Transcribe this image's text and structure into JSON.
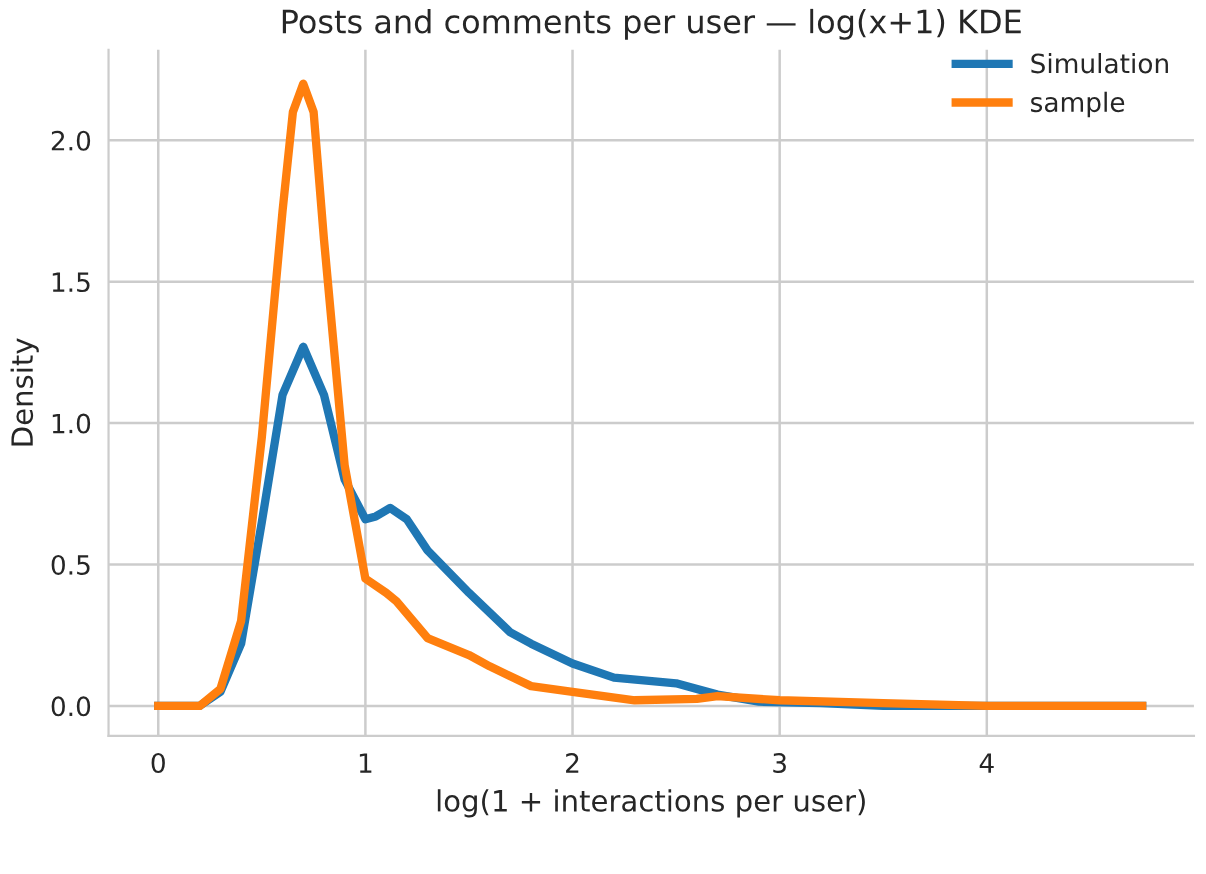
{
  "chart_data": {
    "type": "line",
    "title": "Posts and comments per user — log(x+1) KDE",
    "xlabel": "log(1 + interactions per user)",
    "ylabel": "Density",
    "xlim": [
      -0.24,
      5.0
    ],
    "ylim": [
      -0.106,
      2.32
    ],
    "xticks": [
      0,
      1,
      2,
      3,
      4
    ],
    "yticks": [
      {
        "value": 0,
        "label": "0.0"
      },
      {
        "value": 0.5,
        "label": "0.5"
      },
      {
        "value": 1,
        "label": "1.0"
      },
      {
        "value": 1.5,
        "label": "1.5"
      },
      {
        "value": 2,
        "label": "2.0"
      }
    ],
    "grid": true,
    "legend": "top right",
    "marker": "none",
    "line_style": "solid",
    "series": [
      {
        "name": "Simulation",
        "color": "#1f77b4",
        "x": [
          0,
          0.2,
          0.3,
          0.4,
          0.5,
          0.6,
          0.7,
          0.8,
          0.9,
          1.0,
          1.05,
          1.12,
          1.2,
          1.3,
          1.5,
          1.7,
          1.8,
          2.0,
          2.2,
          2.5,
          2.7,
          2.9,
          3.2,
          3.5,
          4.0,
          4.75
        ],
        "values": [
          0,
          0.0,
          0.05,
          0.22,
          0.65,
          1.1,
          1.27,
          1.1,
          0.8,
          0.66,
          0.67,
          0.7,
          0.66,
          0.55,
          0.4,
          0.26,
          0.22,
          0.15,
          0.1,
          0.08,
          0.04,
          0.015,
          0.01,
          0.0,
          0.0,
          0.0
        ]
      },
      {
        "name": "sample",
        "color": "#ff7f0e",
        "x": [
          0,
          0.2,
          0.3,
          0.4,
          0.5,
          0.6,
          0.65,
          0.7,
          0.75,
          0.8,
          0.9,
          1.0,
          1.1,
          1.15,
          1.3,
          1.5,
          1.6,
          1.8,
          2.0,
          2.3,
          2.6,
          2.7,
          3.0,
          3.5,
          4.0,
          4.75
        ],
        "values": [
          0,
          0.0,
          0.06,
          0.3,
          0.95,
          1.75,
          2.1,
          2.2,
          2.1,
          1.65,
          0.85,
          0.45,
          0.4,
          0.37,
          0.24,
          0.18,
          0.14,
          0.07,
          0.05,
          0.02,
          0.025,
          0.035,
          0.02,
          0.01,
          0.0,
          0.0
        ]
      }
    ]
  }
}
